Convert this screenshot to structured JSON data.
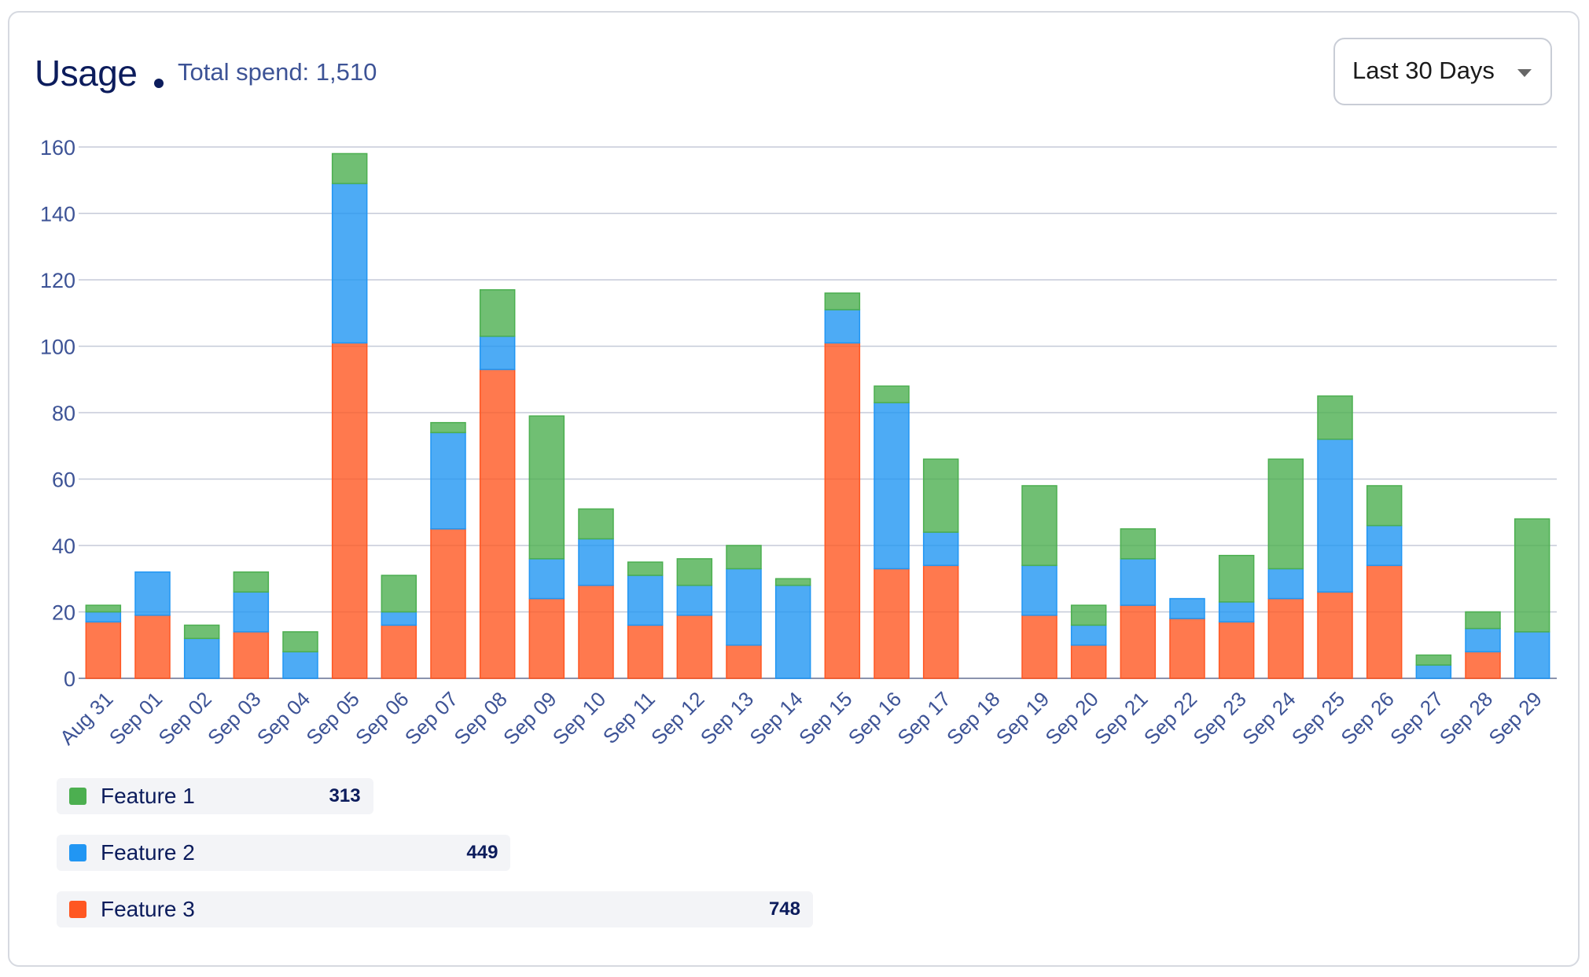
{
  "header": {
    "title": "Usage",
    "total_spend": "Total spend: 1,510"
  },
  "range_select": {
    "selected": "Last 30 Days"
  },
  "legend": [
    {
      "name": "Feature 1",
      "value": "313",
      "color": "#4caf50"
    },
    {
      "name": "Feature 2",
      "value": "449",
      "color": "#2196f3"
    },
    {
      "name": "Feature 3",
      "value": "748",
      "color": "#ff5722"
    }
  ],
  "chart_data": {
    "type": "bar",
    "stacked": true,
    "grid": true,
    "ylim": [
      0,
      160
    ],
    "yticks": [
      0,
      20,
      40,
      60,
      80,
      100,
      120,
      140,
      160
    ],
    "categories": [
      "Aug 31",
      "Sep 01",
      "Sep 02",
      "Sep 03",
      "Sep 04",
      "Sep 05",
      "Sep 06",
      "Sep 07",
      "Sep 08",
      "Sep 09",
      "Sep 10",
      "Sep 11",
      "Sep 12",
      "Sep 13",
      "Sep 14",
      "Sep 15",
      "Sep 16",
      "Sep 17",
      "Sep 18",
      "Sep 19",
      "Sep 20",
      "Sep 21",
      "Sep 22",
      "Sep 23",
      "Sep 24",
      "Sep 25",
      "Sep 26",
      "Sep 27",
      "Sep 28",
      "Sep 29"
    ],
    "series": [
      {
        "name": "Feature 3",
        "color": "#ff5722",
        "values": [
          17,
          19,
          0,
          14,
          0,
          101,
          16,
          45,
          93,
          24,
          28,
          16,
          19,
          10,
          0,
          101,
          33,
          34,
          0,
          19,
          10,
          22,
          18,
          17,
          24,
          26,
          34,
          0,
          8,
          0
        ]
      },
      {
        "name": "Feature 2",
        "color": "#2196f3",
        "values": [
          3,
          13,
          12,
          12,
          8,
          48,
          4,
          29,
          10,
          12,
          14,
          15,
          9,
          23,
          28,
          10,
          50,
          10,
          0,
          15,
          6,
          14,
          6,
          6,
          9,
          46,
          12,
          4,
          7,
          14
        ]
      },
      {
        "name": "Feature 1",
        "color": "#4caf50",
        "values": [
          2,
          0,
          4,
          6,
          6,
          9,
          11,
          3,
          14,
          43,
          9,
          4,
          8,
          7,
          2,
          5,
          5,
          22,
          0,
          24,
          6,
          9,
          0,
          14,
          33,
          13,
          12,
          3,
          5,
          34
        ]
      }
    ]
  }
}
